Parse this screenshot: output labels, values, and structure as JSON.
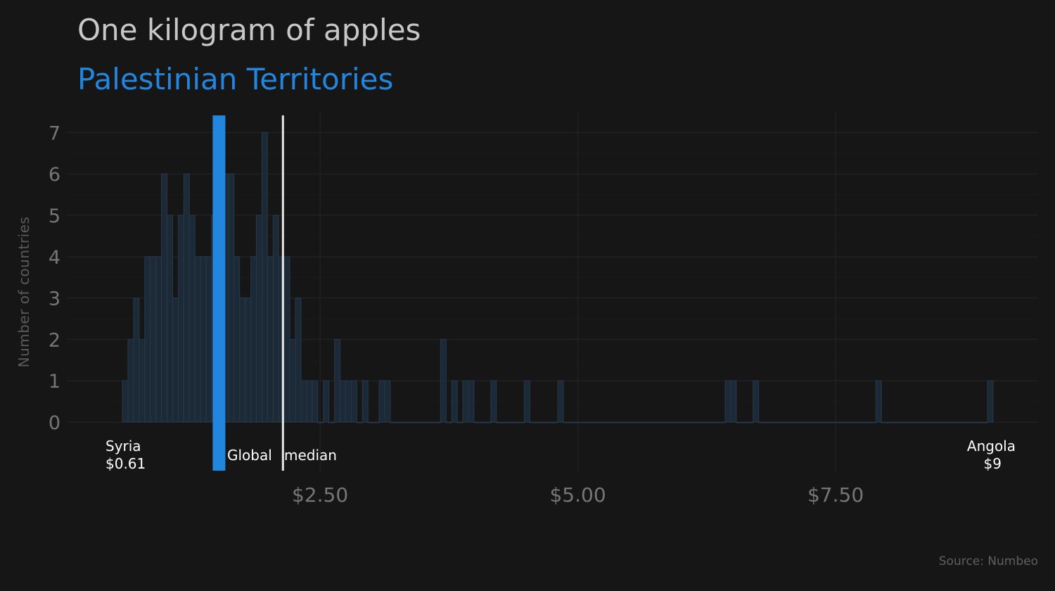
{
  "chart_data": {
    "type": "bar",
    "title": "One kilogram of apples",
    "subtitle": "Palestinian Territories",
    "ylabel": "Number of countries",
    "source": "Source: Numbeo",
    "xlim": [
      0.61,
      9.0
    ],
    "ylim": [
      0,
      7
    ],
    "x_ticks": [
      {
        "value": 2.5,
        "label": "$2.50"
      },
      {
        "value": 5.0,
        "label": "$5.00"
      },
      {
        "value": 7.5,
        "label": "$7.50"
      }
    ],
    "y_ticks": [
      0,
      1,
      2,
      3,
      4,
      5,
      6,
      7
    ],
    "grid": true,
    "bin_counts": [
      1,
      2,
      3,
      2,
      4,
      4,
      4,
      6,
      5,
      3,
      5,
      6,
      5,
      4,
      4,
      4,
      5,
      4,
      6,
      6,
      4,
      3,
      3,
      4,
      5,
      7,
      4,
      5,
      4,
      4,
      2,
      3,
      1,
      1,
      1,
      0,
      1,
      0,
      2,
      1,
      1,
      1,
      0,
      1,
      0,
      0,
      1,
      1,
      0,
      0,
      0,
      0,
      0,
      0,
      0,
      0,
      0,
      2,
      0,
      1,
      0,
      1,
      1,
      0,
      0,
      0,
      1,
      0,
      0,
      0,
      0,
      0,
      1,
      0,
      0,
      0,
      0,
      0,
      1,
      0,
      0,
      0,
      0,
      0,
      0,
      0,
      0,
      0,
      0,
      0,
      0,
      0,
      0,
      0,
      0,
      0,
      0,
      0,
      0,
      0,
      0,
      0,
      0,
      0,
      0,
      0,
      0,
      0,
      1,
      1,
      0,
      0,
      0,
      1,
      0,
      0,
      0,
      0,
      0,
      0,
      0,
      0,
      0,
      0,
      0,
      0,
      0,
      0,
      0,
      0,
      0,
      0,
      0,
      0,
      0,
      1,
      0,
      0,
      0,
      0,
      0,
      0,
      0,
      0,
      0,
      0,
      0,
      0,
      0,
      0,
      0,
      0,
      0,
      0,
      0,
      1
    ],
    "highlight": {
      "name": "Palestinian Territories",
      "value": 1.52,
      "color": "#2386de"
    },
    "median": {
      "label": "median",
      "value": 2.14
    },
    "median_prefix": "Global",
    "min_label": {
      "country": "Syria",
      "price": "$0.61"
    },
    "max_label": {
      "country": "Angola",
      "price": "$9"
    },
    "colors": {
      "bars_fill": "#1c2a37",
      "bars_stroke": "#263849",
      "median_line": "#e8e8e8",
      "grid": "#202020"
    }
  }
}
